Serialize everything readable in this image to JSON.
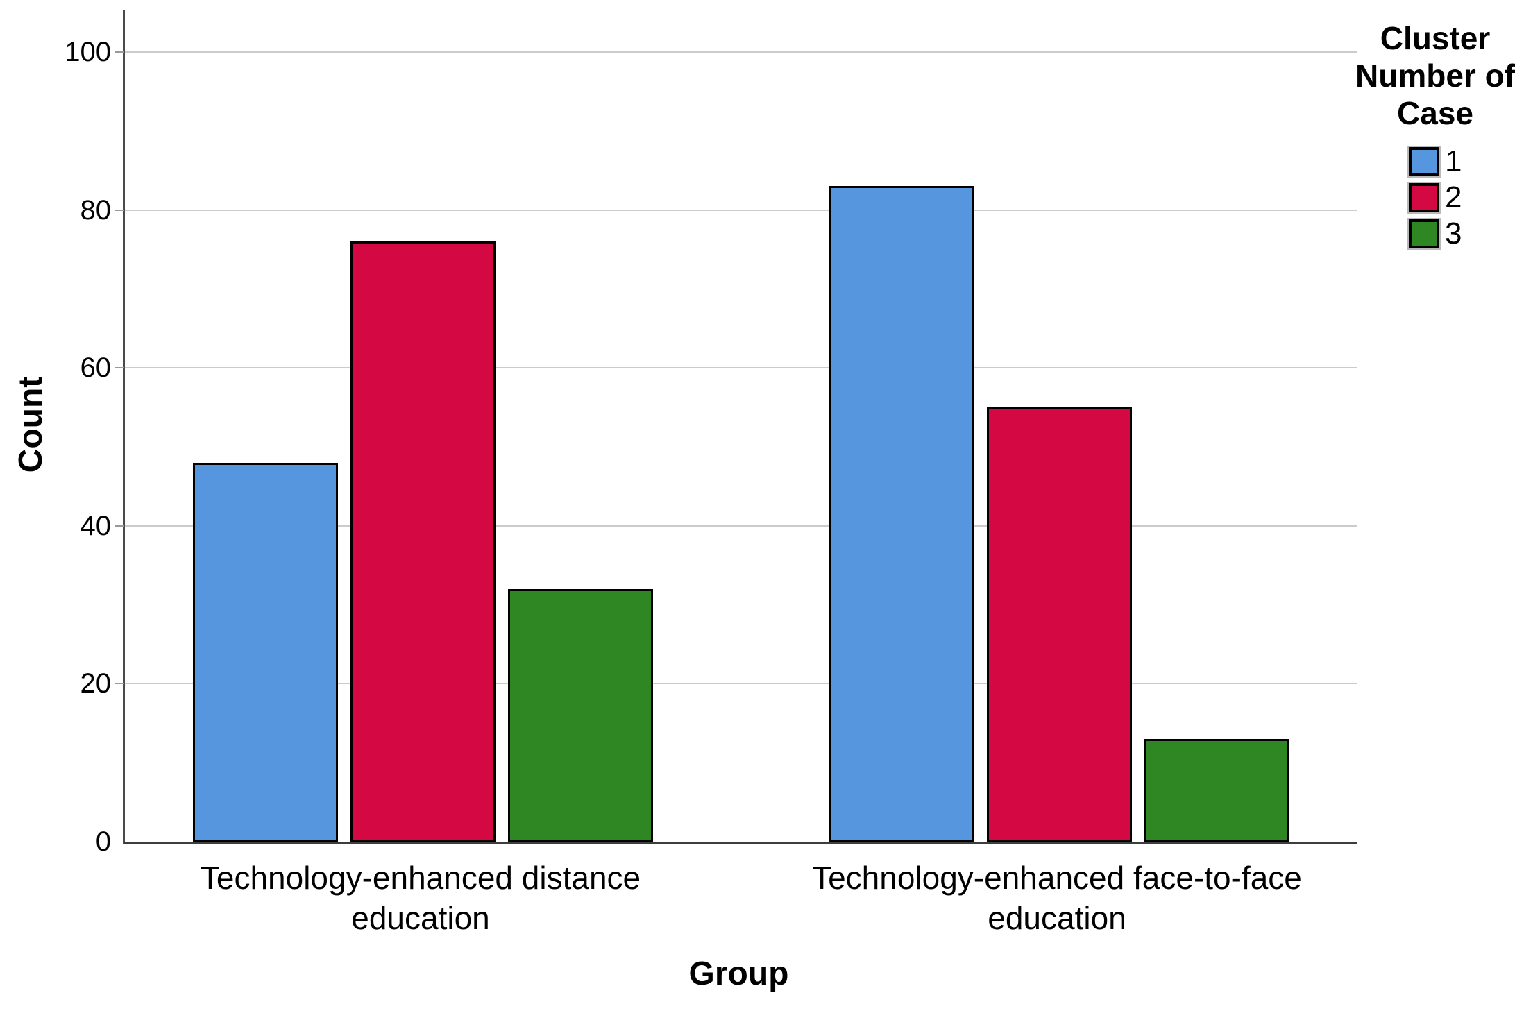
{
  "chart_data": {
    "type": "bar",
    "title": "",
    "xlabel": "Group",
    "ylabel": "Count",
    "legend_title": "Cluster Number of Case",
    "legend_position": "top-right",
    "grid": true,
    "ylim": [
      0,
      100
    ],
    "yticks": [
      0,
      20,
      40,
      60,
      80,
      100
    ],
    "categories": [
      "Technology-enhanced distance education",
      "Technology-enhanced face-to-face education"
    ],
    "series": [
      {
        "name": "1",
        "color": "#5596DF",
        "values": [
          48,
          83
        ]
      },
      {
        "name": "2",
        "color": "#D40943",
        "values": [
          76,
          55
        ]
      },
      {
        "name": "3",
        "color": "#2F8723",
        "values": [
          32,
          13
        ]
      }
    ],
    "colors": {
      "axis": "#3d3d3d",
      "gridline": "#cbcbcb",
      "bar_border": "#000000",
      "text": "#000000"
    }
  }
}
